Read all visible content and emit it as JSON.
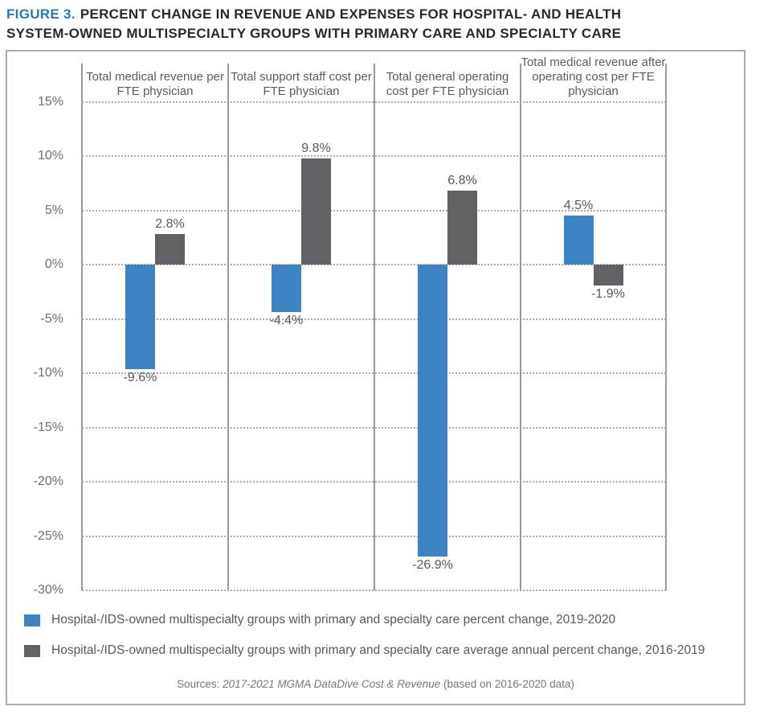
{
  "title": {
    "figure_label": "FIGURE 3.",
    "lines": [
      "PERCENT CHANGE IN REVENUE AND EXPENSES FOR HOSPITAL- AND HEALTH",
      "SYSTEM-OWNED MULTISPECIALTY GROUPS WITH PRIMARY CARE AND SPECIALTY CARE"
    ],
    "accent_color": "#2878be",
    "text_color": "#29292c"
  },
  "chart_data": {
    "type": "bar",
    "categories": [
      "Total medical revenue per FTE physician",
      "Total support staff cost per FTE physician",
      "Total general operating cost per FTE physician",
      "Total medical revenue after operating cost per FTE physician"
    ],
    "series": [
      {
        "name": "Hospital-/IDS-owned multispecialty groups with primary and specialty care percent change, 2019-2020",
        "color": "#3d84c4",
        "values": [
          -9.6,
          -4.4,
          -26.9,
          4.5
        ],
        "labels": [
          "-9.6%",
          "-4.4%",
          "-26.9%",
          "4.5%"
        ]
      },
      {
        "name": "Hospital-/IDS-owned multispecialty groups with primary and specialty care average annual percent change, 2016-2019",
        "color": "#616265",
        "values": [
          2.8,
          9.8,
          6.8,
          -1.9
        ],
        "labels": [
          "2.8%",
          "9.8%",
          "6.8%",
          "-1.9%"
        ]
      }
    ],
    "y_ticks": [
      15,
      10,
      5,
      0,
      -5,
      -10,
      -15,
      -20,
      -25,
      -30
    ],
    "y_tick_labels": [
      "15%",
      "10%",
      "5%",
      "0%",
      "-5%",
      "-10%",
      "-15%",
      "-20%",
      "-25%",
      "-30%"
    ],
    "ylim": [
      -30,
      15
    ],
    "grid": "horizontal-dotted",
    "legend_position": "bottom-left"
  },
  "sources": {
    "prefix": "Sources: ",
    "italic": "2017-2021 MGMA DataDive Cost & Revenue",
    "suffix": " (based on 2016-2020 data)"
  }
}
